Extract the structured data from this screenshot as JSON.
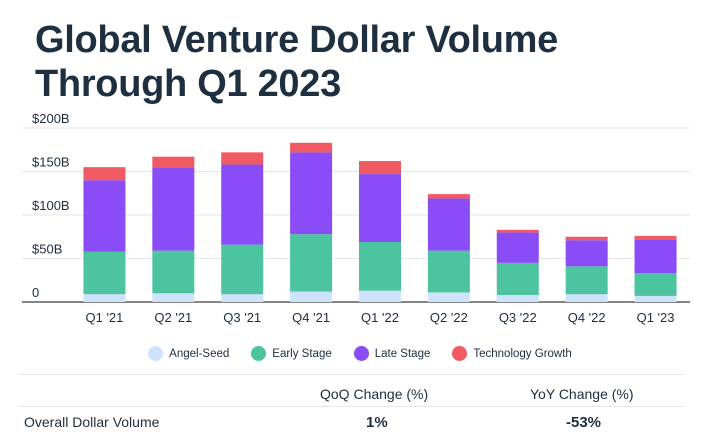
{
  "title": "Global Venture Dollar Volume Through Q1 2023",
  "chart_data": {
    "type": "bar",
    "stacked": true,
    "title": "Global Venture Dollar Volume Through Q1 2023",
    "categories": [
      "Q1 '21",
      "Q2 '21",
      "Q3 '21",
      "Q4 '21",
      "Q1 '22",
      "Q2 '22",
      "Q3 '22",
      "Q4 '22",
      "Q1 '23"
    ],
    "series": [
      {
        "name": "Angel-Seed",
        "color": "#cfe2fb",
        "values": [
          9,
          10,
          9,
          12,
          13,
          11,
          8,
          9,
          7
        ]
      },
      {
        "name": "Early Stage",
        "color": "#4cc4a0",
        "values": [
          49,
          49,
          57,
          66,
          56,
          48,
          37,
          32,
          26
        ]
      },
      {
        "name": "Late Stage",
        "color": "#8a4cf6",
        "values": [
          82,
          95,
          92,
          94,
          78,
          60,
          35,
          30,
          39
        ]
      },
      {
        "name": "Technology Growth",
        "color": "#ef5a63",
        "values": [
          15,
          13,
          14,
          11,
          15,
          5,
          3,
          4,
          4
        ]
      }
    ],
    "yticks": [
      "$200B",
      "$150B",
      "$100B",
      "$50B",
      "0"
    ],
    "ylim": [
      0,
      200
    ],
    "legend_position": "bottom"
  },
  "table": {
    "headers": [
      "QoQ Change (%)",
      "YoY Change (%)"
    ],
    "rows": [
      {
        "label": "Overall Dollar Volume",
        "values": [
          "1%",
          "-53%"
        ]
      }
    ]
  }
}
